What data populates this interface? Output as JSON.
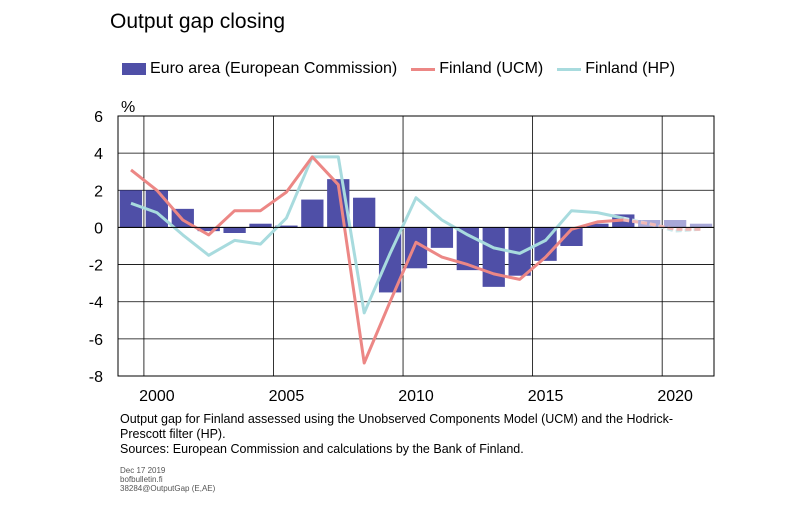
{
  "title": "Output gap closing",
  "legend": {
    "euro": "Euro area (European Commission)",
    "ucm": "Finland (UCM)",
    "hp": "Finland (HP)"
  },
  "colors": {
    "euro": "#4f4fa7",
    "euro_forecast": "#a8a8d8",
    "ucm": "#ec8785",
    "ucm_forecast": "#f2b8b6",
    "hp": "#a8dbde",
    "hp_forecast": "#cde9eb"
  },
  "footnote": {
    "line1": "Output gap for Finland assessed using the Unobserved Components Model (UCM) and the Hodrick-",
    "line2": "Prescott filter (HP).",
    "line3": "Sources: European Commission and calculations by the Bank of Finland."
  },
  "meta": {
    "date": "Dec 17 2019",
    "site": "bofbulletin.fi",
    "code": "38284@OutputGap  (E,AE)"
  },
  "chart_data": {
    "type": "bar",
    "ylabel": "%",
    "ylim": [
      -8,
      6
    ],
    "yticks": [
      6,
      4,
      2,
      0,
      -2,
      -4,
      -6,
      -8
    ],
    "xlim": [
      1999,
      2022
    ],
    "xticks": [
      2000,
      2005,
      2010,
      2015,
      2020
    ],
    "grid": true,
    "legend_position": "top",
    "forecast_from": 2019,
    "categories": [
      1999,
      2000,
      2001,
      2002,
      2003,
      2004,
      2005,
      2006,
      2007,
      2008,
      2009,
      2010,
      2011,
      2012,
      2013,
      2014,
      2015,
      2016,
      2017,
      2018,
      2019,
      2020,
      2021
    ],
    "series": [
      {
        "name": "Euro area (European Commission)",
        "kind": "bar",
        "values": [
          2.0,
          2.0,
          1.0,
          -0.2,
          -0.3,
          0.2,
          0.1,
          1.5,
          2.6,
          1.6,
          -3.5,
          -2.2,
          -1.1,
          -2.3,
          -3.2,
          -2.6,
          -1.8,
          -1.0,
          0.2,
          0.7,
          0.4,
          0.4,
          0.2
        ]
      },
      {
        "name": "Finland (UCM)",
        "kind": "line",
        "values": [
          3.1,
          2.0,
          0.4,
          -0.4,
          0.9,
          0.9,
          1.9,
          3.8,
          2.3,
          -7.3,
          -4.0,
          -0.8,
          -1.6,
          -2.0,
          -2.5,
          -2.8,
          -1.6,
          -0.1,
          0.3,
          0.4,
          0.2,
          -0.1,
          -0.1
        ]
      },
      {
        "name": "Finland (HP)",
        "kind": "line",
        "values": [
          1.3,
          0.8,
          -0.4,
          -1.5,
          -0.7,
          -0.9,
          0.5,
          3.8,
          3.8,
          -4.6,
          -1.4,
          1.6,
          0.4,
          -0.4,
          -1.1,
          -1.4,
          -0.7,
          0.9,
          0.8,
          0.5,
          0.2,
          -0.2,
          -0.1
        ]
      }
    ]
  }
}
